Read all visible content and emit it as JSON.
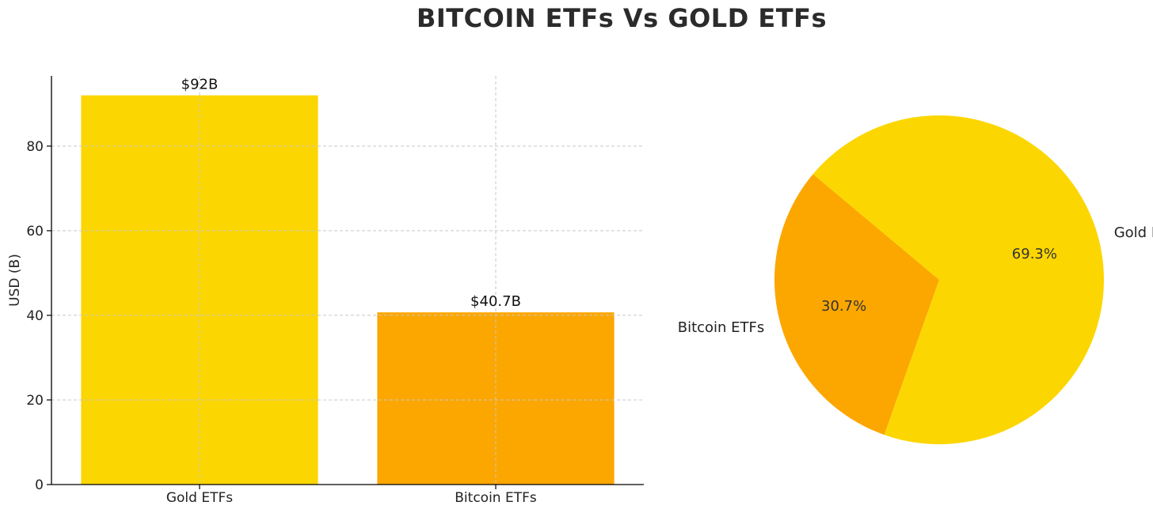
{
  "title": "BITCOIN ETFs Vs GOLD ETFs",
  "chart_data": [
    {
      "type": "bar",
      "title": "",
      "xlabel": "",
      "ylabel": "USD (B)",
      "categories": [
        "Gold ETFs",
        "Bitcoin ETFs"
      ],
      "values": [
        92,
        40.7
      ],
      "data_labels": [
        "$92B",
        "$40.7B"
      ],
      "colors": [
        "#FCD600",
        "#FCA600"
      ],
      "ylim": [
        0,
        96.6
      ],
      "yticks": [
        0,
        20,
        40,
        60,
        80
      ],
      "ytick_labels": [
        "0",
        "20",
        "40",
        "60",
        "80"
      ],
      "grid": true
    },
    {
      "type": "pie",
      "labels": [
        "Bitcoin ETFs",
        "Gold ETFs"
      ],
      "values": [
        30.7,
        69.3
      ],
      "pct_labels": [
        "30.7%",
        "69.3%"
      ],
      "colors": [
        "#FCA600",
        "#FCD600"
      ],
      "start_angle_deg": 140
    }
  ]
}
